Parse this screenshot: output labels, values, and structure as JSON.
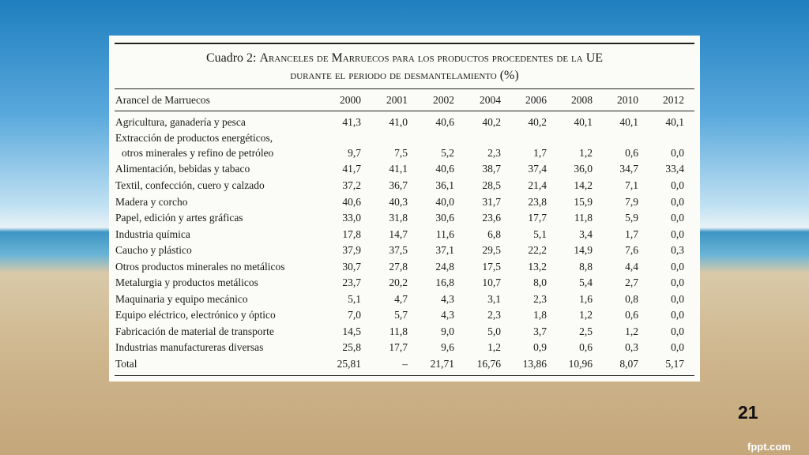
{
  "table": {
    "title_label": "Cuadro 2:",
    "title_line1": "Aranceles de Marruecos para los productos procedentes de la UE",
    "title_line2": "durante el periodo de desmantelamiento (%)",
    "header": [
      "Arancel de Marruecos",
      "2000",
      "2001",
      "2002",
      "2004",
      "2006",
      "2008",
      "2010",
      "2012"
    ],
    "rows": [
      {
        "label": "Agricultura, ganadería y pesca",
        "values": [
          "41,3",
          "41,0",
          "40,6",
          "40,2",
          "40,2",
          "40,1",
          "40,1",
          "40,1"
        ]
      },
      {
        "label": [
          "Extracción de productos energéticos,",
          "otros minerales y refino de petróleo"
        ],
        "values": [
          "9,7",
          "7,5",
          "5,2",
          "2,3",
          "1,7",
          "1,2",
          "0,6",
          "0,0"
        ]
      },
      {
        "label": "Alimentación, bebidas y tabaco",
        "values": [
          "41,7",
          "41,1",
          "40,6",
          "38,7",
          "37,4",
          "36,0",
          "34,7",
          "33,4"
        ]
      },
      {
        "label": "Textil, confección, cuero y calzado",
        "values": [
          "37,2",
          "36,7",
          "36,1",
          "28,5",
          "21,4",
          "14,2",
          "7,1",
          "0,0"
        ]
      },
      {
        "label": "Madera y corcho",
        "values": [
          "40,6",
          "40,3",
          "40,0",
          "31,7",
          "23,8",
          "15,9",
          "7,9",
          "0,0"
        ]
      },
      {
        "label": "Papel, edición y artes gráficas",
        "values": [
          "33,0",
          "31,8",
          "30,6",
          "23,6",
          "17,7",
          "11,8",
          "5,9",
          "0,0"
        ]
      },
      {
        "label": "Industria química",
        "values": [
          "17,8",
          "14,7",
          "11,6",
          "6,8",
          "5,1",
          "3,4",
          "1,7",
          "0,0"
        ]
      },
      {
        "label": "Caucho y plástico",
        "values": [
          "37,9",
          "37,5",
          "37,1",
          "29,5",
          "22,2",
          "14,9",
          "7,6",
          "0,3"
        ]
      },
      {
        "label": "Otros productos minerales no metálicos",
        "values": [
          "30,7",
          "27,8",
          "24,8",
          "17,5",
          "13,2",
          "8,8",
          "4,4",
          "0,0"
        ]
      },
      {
        "label": "Metalurgia y productos metálicos",
        "values": [
          "23,7",
          "20,2",
          "16,8",
          "10,7",
          "8,0",
          "5,4",
          "2,7",
          "0,0"
        ]
      },
      {
        "label": "Maquinaria y equipo mecánico",
        "values": [
          "5,1",
          "4,7",
          "4,3",
          "3,1",
          "2,3",
          "1,6",
          "0,8",
          "0,0"
        ]
      },
      {
        "label": "Equipo eléctrico, electrónico y óptico",
        "values": [
          "7,0",
          "5,7",
          "4,3",
          "2,3",
          "1,8",
          "1,2",
          "0,6",
          "0,0"
        ]
      },
      {
        "label": "Fabricación de material de transporte",
        "values": [
          "14,5",
          "11,8",
          "9,0",
          "5,0",
          "3,7",
          "2,5",
          "1,2",
          "0,0"
        ]
      },
      {
        "label": "Industrias manufactureras diversas",
        "values": [
          "25,8",
          "17,7",
          "9,6",
          "1,2",
          "0,9",
          "0,6",
          "0,3",
          "0,0"
        ]
      },
      {
        "label": "Total",
        "values": [
          "25,81",
          "–",
          "21,71",
          "16,76",
          "13,86",
          "10,96",
          "8,07",
          "5,17"
        ]
      }
    ]
  },
  "slide": {
    "number": "21",
    "footer": "fppt.com"
  }
}
